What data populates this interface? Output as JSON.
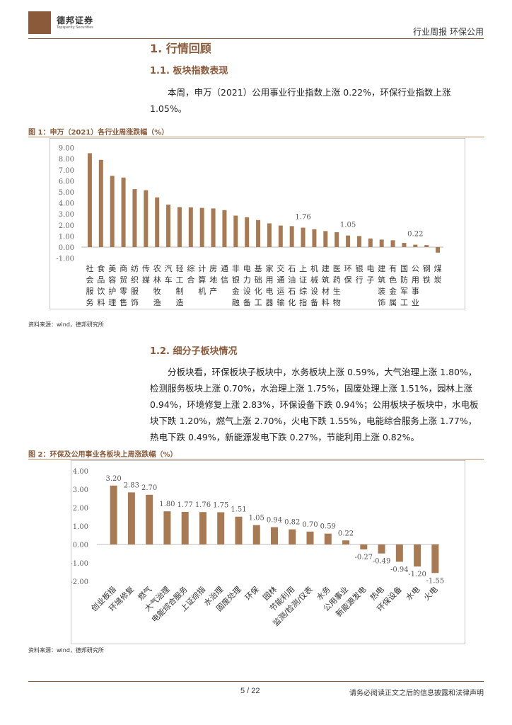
{
  "header": {
    "brand_cn": "德邦证券",
    "brand_en": "Topsperity Securities",
    "report_type": "行业周报  环保公用"
  },
  "section1": {
    "title": "1. 行情回顾",
    "sub1_title": "1.1. 板块指数表现",
    "sub1_para": "本周，申万（2021）公用事业行业指数上涨 0.22%，环保行业指数上涨 1.05%。",
    "fig1_title": "图 1：申万（2021）各行业周涨跌幅（%）",
    "fig1_source": "资料来源：wind，德邦研究所",
    "sub2_title": "1.2. 细分子板块情况",
    "sub2_para": "分板块看，环保板块子板块中，水务板块上涨 0.59%，大气治理上涨 1.80%，检测服务板块上涨 0.70%，水治理上涨 1.75%，固废处理上涨 1.51%，园林上涨 0.94%，环境修复上涨 2.83%，环保设备下跌 0.94%；公用板块子板块中，水电板块下跌 1.20%，燃气上涨 2.70%，火电下跌 1.55%，电能综合服务上涨 1.77%，热电下跌 0.49%，新能源发电下跌 0.27%，节能利用上涨 0.82%。",
    "fig2_title": "图 2：环保及公用事业各板块上周涨跌幅（%）",
    "fig2_source": "资料来源：wind，德邦研究所"
  },
  "chart_data": [
    {
      "type": "bar",
      "title": "图 1：申万（2021）各行业周涨跌幅（%）",
      "categories": [
        "社会服务",
        "食品饮料",
        "美容护理",
        "商贸零售",
        "纺织服饰",
        "传媒",
        "农林牧渔",
        "汽车",
        "轻工制造",
        "综合",
        "计算机",
        "房地产",
        "通信",
        "非银金融",
        "电力设备",
        "基础化工",
        "家用电器",
        "交通运输",
        "石油石化",
        "上证综指",
        "机械设备",
        "建筑材料",
        "医药生物",
        "环保",
        "银行",
        "电子",
        "建筑装饰",
        "有色金属",
        "国防军工",
        "公用事业",
        "钢铁",
        "煤炭"
      ],
      "category_labels": [
        [
          "社",
          "会",
          "服",
          "务"
        ],
        [
          "食",
          "品",
          "饮",
          "料"
        ],
        [
          "美",
          "容",
          "护",
          "理"
        ],
        [
          "商",
          "贸",
          "零",
          "售"
        ],
        [
          "纺",
          "织",
          "服",
          "饰"
        ],
        [
          "传",
          "媒"
        ],
        [
          "农",
          "林",
          "牧",
          "渔"
        ],
        [
          "汽",
          "车"
        ],
        [
          "轻",
          "工",
          "制",
          "造"
        ],
        [
          "综",
          "合"
        ],
        [
          "计",
          "算",
          "机"
        ],
        [
          "房",
          "地",
          "产"
        ],
        [
          "通",
          "信"
        ],
        [
          "非",
          "银",
          "金",
          "融"
        ],
        [
          "电",
          "力",
          "设",
          "备"
        ],
        [
          "基",
          "础",
          "化",
          "工"
        ],
        [
          "家",
          "用",
          "电",
          "器"
        ],
        [
          "交",
          "通",
          "运",
          "输"
        ],
        [
          "石",
          "油",
          "石",
          "化"
        ],
        [
          "上",
          "证",
          "综",
          "指"
        ],
        [
          "机",
          "械",
          "设",
          "备"
        ],
        [
          "建",
          "筑",
          "材",
          "料"
        ],
        [
          "医",
          "药",
          "生",
          "物"
        ],
        [
          "环",
          "保"
        ],
        [
          "银",
          "行"
        ],
        [
          "电",
          "子"
        ],
        [
          "建",
          "筑",
          "装",
          "饰"
        ],
        [
          "有",
          "色",
          "金",
          "属"
        ],
        [
          "国",
          "防",
          "军",
          "工"
        ],
        [
          "公",
          "用",
          "事",
          "业"
        ],
        [
          "钢",
          "铁"
        ],
        [
          "煤",
          "炭"
        ]
      ],
      "values": [
        8.5,
        7.9,
        6.45,
        6.3,
        5.25,
        5.15,
        4.5,
        3.85,
        3.62,
        3.6,
        3.55,
        3.5,
        3.35,
        2.85,
        2.7,
        2.45,
        2.15,
        1.95,
        1.9,
        1.76,
        1.62,
        1.45,
        1.35,
        1.05,
        1.0,
        0.78,
        0.68,
        0.62,
        0.38,
        0.22,
        0.18,
        -0.5
      ],
      "data_labels": {
        "19": "1.76",
        "23": "1.05",
        "29": "0.22"
      },
      "yticks": [
        "9.00",
        "8.00",
        "7.00",
        "6.00",
        "5.00",
        "4.00",
        "3.00",
        "2.00",
        "1.00",
        "0.00",
        "-1.00"
      ],
      "ylim": [
        -1,
        9
      ],
      "color": "#a77a54"
    },
    {
      "type": "bar",
      "title": "图 2：环保及公用事业各板块上周涨跌幅（%）",
      "categories": [
        "创业板指",
        "环境修复",
        "燃气",
        "大气治理",
        "电能综合服务",
        "上证综指",
        "水治理",
        "固废处理",
        "环保",
        "园林",
        "节能利用",
        "监测/检测/仪表",
        "水务",
        "公用事业",
        "新能源发电",
        "热电",
        "环保设备",
        "水电",
        "火电"
      ],
      "values": [
        3.2,
        2.83,
        2.7,
        1.8,
        1.77,
        1.76,
        1.75,
        1.51,
        1.05,
        0.94,
        0.82,
        0.7,
        0.59,
        0.22,
        -0.27,
        -0.49,
        -0.94,
        -1.2,
        -1.55
      ],
      "value_labels": [
        "3.20",
        "2.83",
        "2.70",
        "1.80",
        "1.77",
        "1.76",
        "1.75",
        "1.51",
        "1.05",
        "0.94",
        "0.82",
        "0.70",
        "0.59",
        "0.22",
        "-0.27",
        "-0.49",
        "-0.94",
        "-1.20",
        "-1.55"
      ],
      "yticks": [
        "4.00",
        "3.00",
        "2.00",
        "1.00",
        "0.00",
        "-1.00",
        "-2.00"
      ],
      "ylim": [
        -2,
        4
      ],
      "color": "#a77a54"
    }
  ],
  "footer": {
    "page": "5 / 22",
    "disclaimer": "请务必阅读正文之后的信息披露和法律声明"
  }
}
